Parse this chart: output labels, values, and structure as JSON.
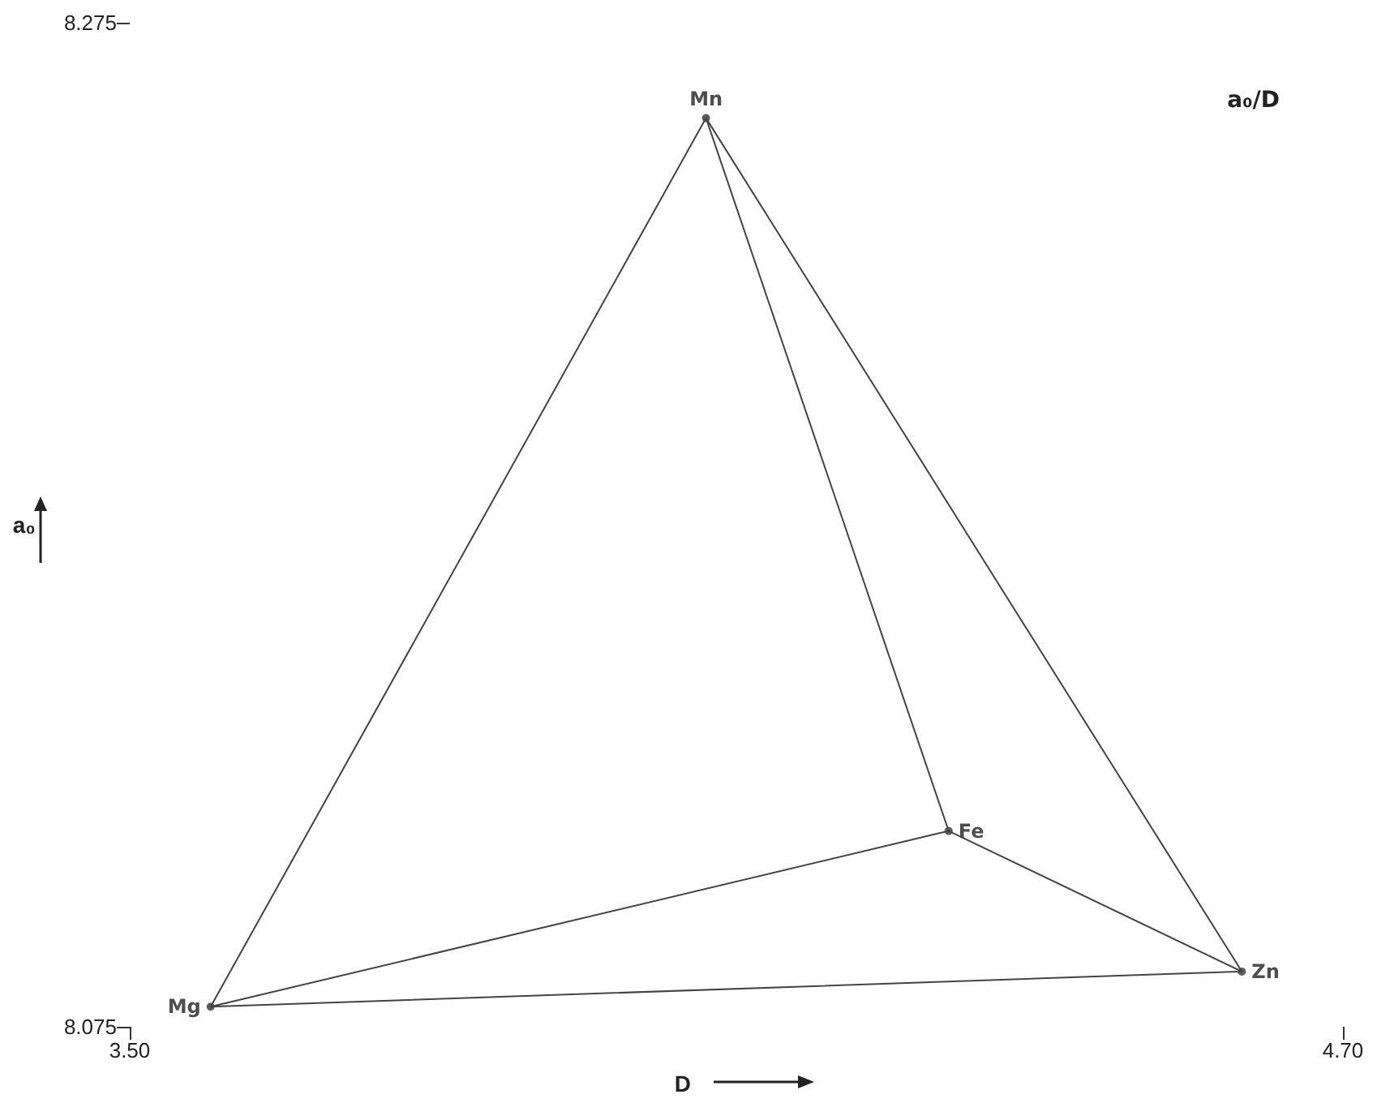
{
  "chart_data": {
    "type": "scatter",
    "xlabel": "D",
    "ylabel": "a₀",
    "annotations": [
      "a₀/D",
      {
        "text": "Mg",
        "x": 3.58,
        "y": 8.079
      },
      {
        "text": "Mn",
        "x": 4.07,
        "y": 8.256
      },
      {
        "text": "Fe",
        "x": 4.31,
        "y": 8.114
      },
      {
        "text": "Zn",
        "x": 4.6,
        "y": 8.086
      }
    ],
    "xlim": [
      3.5,
      4.7
    ],
    "xticks": [
      {
        "value": 3.5,
        "label": "3.50"
      },
      {
        "value": 4.7,
        "label": "4.70"
      }
    ],
    "ylim": [
      8.075,
      8.275
    ],
    "yticks": [
      8.075,
      8.275
    ],
    "grid": false,
    "marker": "circle",
    "series": [
      {
        "type": "scatter",
        "color": "#333333",
        "x": [
          3.58,
          4.07,
          4.31,
          4.6
        ],
        "values": [
          8.079,
          8.256,
          8.114,
          8.086
        ]
      },
      {
        "type": "line",
        "color": "#444444",
        "line_style": "solid",
        "marker": "none",
        "x": [
          3.58,
          4.07,
          4.6,
          3.58,
          4.31
        ],
        "values": [
          8.079,
          8.256,
          8.086,
          8.079,
          8.114
        ]
      },
      {
        "type": "line",
        "color": "#444444",
        "line_style": "solid",
        "marker": "none",
        "x": [
          4.07,
          4.31,
          4.6
        ],
        "values": [
          8.256,
          8.114,
          8.086
        ]
      }
    ]
  }
}
